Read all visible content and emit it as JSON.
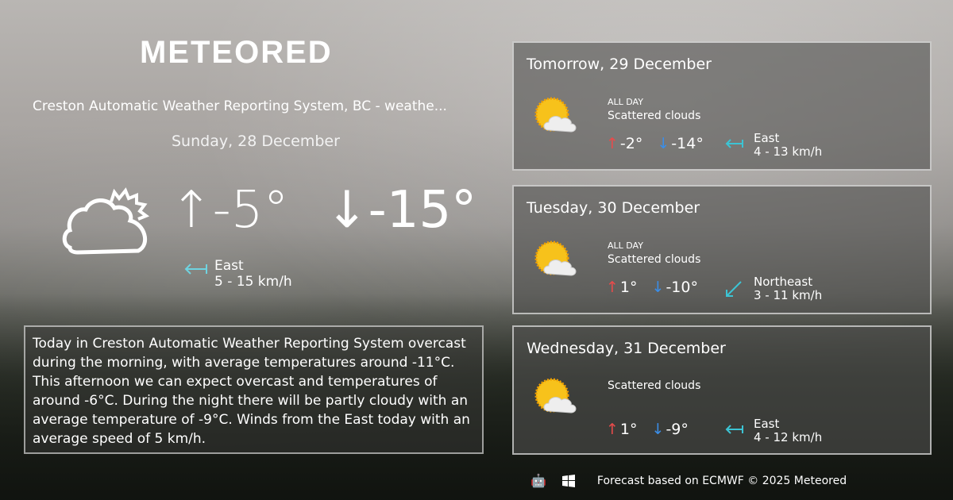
{
  "brand": "METEORED",
  "current": {
    "station": "Creston Automatic Weather Reporting System, BC - weathe...",
    "date": "Sunday, 28 December",
    "icon": "partly-cloudy-outline-icon",
    "high": "-5°",
    "low": "-15°",
    "wind_dir": "East",
    "wind_speed": "5 - 15 km/h"
  },
  "summary": "Today in Creston Automatic Weather Reporting System overcast during the morning, with average temperatures around -11°C. This afternoon we can expect overcast and temperatures of around -6°C. During the night there will be partly cloudy with an average temperature of -9°C. Winds from the East today with an average speed of 5 km/h.",
  "forecast": [
    {
      "title": "Tomorrow, 29 December",
      "period": "ALL DAY",
      "condition": "Scattered clouds",
      "high": "-2°",
      "low": "-14°",
      "wind_dir": "East",
      "wind_speed": "4 - 13 km/h"
    },
    {
      "title": "Tuesday, 30 December",
      "period": "ALL DAY",
      "condition": "Scattered clouds",
      "high": "1°",
      "low": "-10°",
      "wind_dir": "Northeast",
      "wind_speed": "3 - 11 km/h"
    },
    {
      "title": "Wednesday, 31 December",
      "condition": "Scattered clouds",
      "high": "1°",
      "low": "-9°",
      "wind_dir": "East",
      "wind_speed": "4 - 12 km/h"
    }
  ],
  "footer": {
    "text": "Forecast based on ECMWF © 2025 Meteored",
    "icons": [
      "android-icon",
      "apple-icon",
      "windows-icon"
    ]
  },
  "colors": {
    "high": "#e84b4b",
    "low": "#3b8ee8",
    "wind": "#3cc4d4"
  }
}
